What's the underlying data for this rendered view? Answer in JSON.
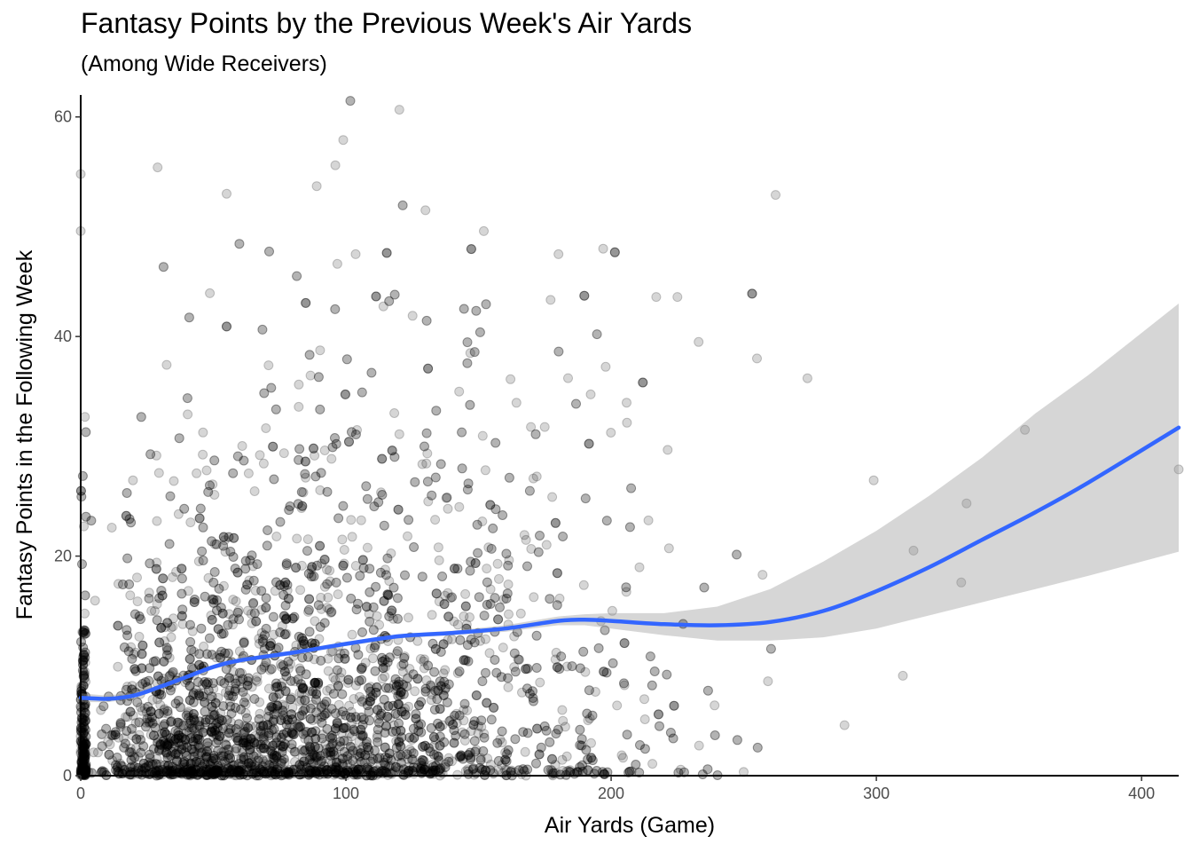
{
  "chart_data": {
    "type": "scatter",
    "title": "Fantasy Points by the Previous Week's Air Yards",
    "subtitle": "(Among Wide Receivers)",
    "xlabel": "Air Yards (Game)",
    "ylabel": "Fantasy Points in the Following Week",
    "xlim": [
      0,
      414
    ],
    "ylim": [
      0,
      62
    ],
    "x_ticks": [
      0,
      100,
      200,
      300,
      400
    ],
    "y_ticks": [
      0,
      20,
      40,
      60
    ],
    "grid": false,
    "colors": {
      "points": "#000000",
      "smooth_line": "#3366FF",
      "ribbon": "#999999"
    },
    "smooth": {
      "x": [
        0,
        10,
        20,
        30,
        40,
        50,
        60,
        80,
        100,
        120,
        140,
        160,
        180,
        190,
        200,
        220,
        240,
        260,
        280,
        300,
        320,
        340,
        360,
        380,
        414
      ],
      "y": [
        7.1,
        7.0,
        7.3,
        8.1,
        9.0,
        9.9,
        10.5,
        11.2,
        12.0,
        12.7,
        13.0,
        13.4,
        14.1,
        14.2,
        14.1,
        13.8,
        13.7,
        14.0,
        15.0,
        16.8,
        19.0,
        21.5,
        24.0,
        26.7,
        31.7
      ],
      "ci_upper": [
        7.5,
        7.3,
        7.6,
        8.3,
        9.2,
        10.1,
        10.7,
        11.4,
        12.2,
        12.9,
        13.2,
        13.7,
        14.5,
        14.7,
        14.8,
        14.8,
        15.4,
        17.0,
        19.5,
        22.3,
        25.5,
        29.0,
        33.0,
        36.5,
        43.0
      ],
      "ci_lower": [
        6.7,
        6.7,
        7.0,
        7.9,
        8.8,
        9.7,
        10.3,
        11.0,
        11.8,
        12.5,
        12.8,
        13.1,
        13.7,
        13.7,
        13.4,
        12.8,
        12.3,
        12.3,
        12.6,
        13.4,
        14.6,
        15.8,
        17.0,
        18.2,
        20.4
      ]
    },
    "notable_points": [
      {
        "x": 99,
        "y": 57.9
      },
      {
        "x": 96,
        "y": 55.6
      },
      {
        "x": 29,
        "y": 55.4
      },
      {
        "x": 55,
        "y": 53.0
      },
      {
        "x": 89,
        "y": 53.7
      },
      {
        "x": 262,
        "y": 52.9
      },
      {
        "x": 130,
        "y": 51.5
      },
      {
        "x": 152,
        "y": 49.6
      },
      {
        "x": 197,
        "y": 48.0
      },
      {
        "x": 356,
        "y": 31.5
      },
      {
        "x": 414,
        "y": 27.9
      },
      {
        "x": 274,
        "y": 36.2
      },
      {
        "x": 299,
        "y": 26.9
      },
      {
        "x": 334,
        "y": 24.8
      },
      {
        "x": 314,
        "y": 20.5
      },
      {
        "x": 310,
        "y": 9.1
      },
      {
        "x": 288,
        "y": 4.6
      },
      {
        "x": 332,
        "y": 17.6
      },
      {
        "x": 255,
        "y": 38.0
      },
      {
        "x": 233,
        "y": 39.5
      },
      {
        "x": 217,
        "y": 43.6
      },
      {
        "x": 225,
        "y": 43.6
      },
      {
        "x": 0,
        "y": 54.8
      },
      {
        "x": 0,
        "y": 49.6
      }
    ]
  }
}
